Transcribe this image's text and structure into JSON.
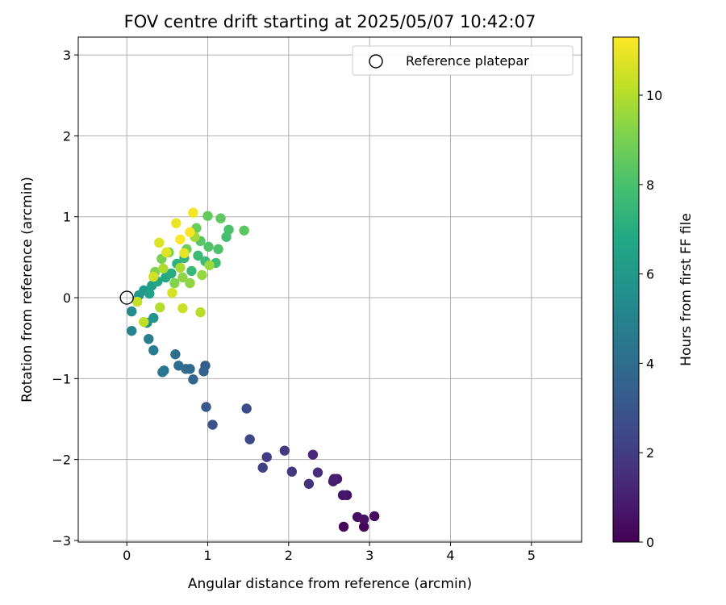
{
  "chart_data": {
    "type": "scatter",
    "title": "FOV centre drift starting at 2025/05/07 10:42:07",
    "xlabel": "Angular distance from reference (arcmin)",
    "ylabel": "Rotation from reference (arcmin)",
    "xlim": [
      -0.6,
      5.62
    ],
    "ylim": [
      -3.02,
      3.22
    ],
    "xticks": [
      0,
      1,
      2,
      3,
      4,
      5
    ],
    "yticks": [
      -3,
      -2,
      -1,
      0,
      1,
      2,
      3
    ],
    "grid": true,
    "legend": {
      "position": "top-right",
      "entries": [
        "Reference platepar"
      ]
    },
    "reference_point": {
      "x": 0,
      "y": 0,
      "label": "Reference platepar"
    },
    "colorbar": {
      "label": "Hours from first FF file",
      "min": 0,
      "max": 11.3,
      "ticks": [
        0,
        2,
        4,
        6,
        8,
        10
      ],
      "colormap": "viridis"
    },
    "points": [
      {
        "x": 2.93,
        "y": -2.83,
        "h": 0.1
      },
      {
        "x": 2.68,
        "y": -2.83,
        "h": 0.2
      },
      {
        "x": 3.06,
        "y": -2.7,
        "h": 0.3
      },
      {
        "x": 2.85,
        "y": -2.71,
        "h": 0.4
      },
      {
        "x": 2.93,
        "y": -2.74,
        "h": 0.5
      },
      {
        "x": 2.72,
        "y": -2.44,
        "h": 0.6
      },
      {
        "x": 2.67,
        "y": -2.44,
        "h": 0.7
      },
      {
        "x": 2.6,
        "y": -2.24,
        "h": 0.8
      },
      {
        "x": 2.55,
        "y": -2.27,
        "h": 0.9
      },
      {
        "x": 2.56,
        "y": -2.24,
        "h": 1.0
      },
      {
        "x": 2.3,
        "y": -1.94,
        "h": 1.3
      },
      {
        "x": 2.36,
        "y": -2.16,
        "h": 1.5
      },
      {
        "x": 2.25,
        "y": -2.3,
        "h": 1.7
      },
      {
        "x": 2.04,
        "y": -2.15,
        "h": 1.8
      },
      {
        "x": 1.95,
        "y": -1.89,
        "h": 1.9
      },
      {
        "x": 1.73,
        "y": -1.97,
        "h": 2.0
      },
      {
        "x": 1.68,
        "y": -2.1,
        "h": 2.1
      },
      {
        "x": 1.52,
        "y": -1.75,
        "h": 2.4
      },
      {
        "x": 1.48,
        "y": -1.37,
        "h": 2.6
      },
      {
        "x": 1.06,
        "y": -1.57,
        "h": 2.8
      },
      {
        "x": 0.98,
        "y": -1.35,
        "h": 3.0
      },
      {
        "x": 0.97,
        "y": -0.84,
        "h": 3.3
      },
      {
        "x": 0.95,
        "y": -0.91,
        "h": 3.5
      },
      {
        "x": 0.82,
        "y": -1.01,
        "h": 3.7
      },
      {
        "x": 0.78,
        "y": -0.88,
        "h": 3.8
      },
      {
        "x": 0.73,
        "y": -0.88,
        "h": 3.9
      },
      {
        "x": 0.64,
        "y": -0.84,
        "h": 4.0
      },
      {
        "x": 0.6,
        "y": -0.7,
        "h": 4.1
      },
      {
        "x": 0.46,
        "y": -0.9,
        "h": 4.3
      },
      {
        "x": 0.44,
        "y": -0.92,
        "h": 4.4
      },
      {
        "x": 0.33,
        "y": -0.65,
        "h": 4.6
      },
      {
        "x": 0.27,
        "y": -0.51,
        "h": 4.8
      },
      {
        "x": 0.06,
        "y": -0.41,
        "h": 5.0
      },
      {
        "x": 0.06,
        "y": -0.17,
        "h": 5.4
      },
      {
        "x": 0.25,
        "y": -0.31,
        "h": 5.6
      },
      {
        "x": 0.33,
        "y": -0.25,
        "h": 5.8
      },
      {
        "x": 0.15,
        "y": 0.03,
        "h": 5.9
      },
      {
        "x": 0.21,
        "y": 0.09,
        "h": 6.1
      },
      {
        "x": 0.31,
        "y": 0.15,
        "h": 6.3
      },
      {
        "x": 0.28,
        "y": 0.05,
        "h": 6.5
      },
      {
        "x": 0.38,
        "y": 0.2,
        "h": 6.7
      },
      {
        "x": 0.48,
        "y": 0.25,
        "h": 6.8
      },
      {
        "x": 0.55,
        "y": 0.3,
        "h": 7.0
      },
      {
        "x": 0.62,
        "y": 0.42,
        "h": 7.2
      },
      {
        "x": 0.71,
        "y": 0.49,
        "h": 7.4
      },
      {
        "x": 0.8,
        "y": 0.33,
        "h": 7.5
      },
      {
        "x": 0.88,
        "y": 0.52,
        "h": 7.6
      },
      {
        "x": 0.97,
        "y": 0.45,
        "h": 7.7
      },
      {
        "x": 1.1,
        "y": 0.43,
        "h": 7.8
      },
      {
        "x": 1.23,
        "y": 0.75,
        "h": 7.9
      },
      {
        "x": 1.26,
        "y": 0.84,
        "h": 8.0
      },
      {
        "x": 1.13,
        "y": 0.6,
        "h": 8.1
      },
      {
        "x": 1.01,
        "y": 0.63,
        "h": 8.2
      },
      {
        "x": 0.91,
        "y": 0.7,
        "h": 8.3
      },
      {
        "x": 1.45,
        "y": 0.83,
        "h": 8.4
      },
      {
        "x": 1.16,
        "y": 0.98,
        "h": 8.5
      },
      {
        "x": 1.0,
        "y": 1.01,
        "h": 8.6
      },
      {
        "x": 0.86,
        "y": 0.86,
        "h": 8.7
      },
      {
        "x": 0.74,
        "y": 0.6,
        "h": 8.8
      },
      {
        "x": 0.52,
        "y": 0.56,
        "h": 8.9
      },
      {
        "x": 0.43,
        "y": 0.48,
        "h": 9.0
      },
      {
        "x": 0.35,
        "y": 0.32,
        "h": 9.1
      },
      {
        "x": 0.59,
        "y": 0.18,
        "h": 9.2
      },
      {
        "x": 0.69,
        "y": 0.25,
        "h": 9.3
      },
      {
        "x": 0.78,
        "y": 0.18,
        "h": 9.4
      },
      {
        "x": 0.93,
        "y": 0.28,
        "h": 9.5
      },
      {
        "x": 1.02,
        "y": 0.4,
        "h": 9.6
      },
      {
        "x": 0.84,
        "y": 0.75,
        "h": 9.7
      },
      {
        "x": 0.66,
        "y": 0.37,
        "h": 9.8
      },
      {
        "x": 0.45,
        "y": 0.36,
        "h": 9.9
      },
      {
        "x": 0.41,
        "y": -0.12,
        "h": 10.0
      },
      {
        "x": 0.91,
        "y": -0.18,
        "h": 10.1
      },
      {
        "x": 0.21,
        "y": -0.3,
        "h": 10.2
      },
      {
        "x": 0.13,
        "y": -0.05,
        "h": 10.3
      },
      {
        "x": 0.69,
        "y": -0.13,
        "h": 10.4
      },
      {
        "x": 0.33,
        "y": 0.26,
        "h": 10.5
      },
      {
        "x": 0.56,
        "y": 0.06,
        "h": 10.6
      },
      {
        "x": 0.4,
        "y": 0.68,
        "h": 10.7
      },
      {
        "x": 0.49,
        "y": 0.56,
        "h": 10.8
      },
      {
        "x": 0.71,
        "y": 0.55,
        "h": 10.9
      },
      {
        "x": 0.61,
        "y": 0.92,
        "h": 11.0
      },
      {
        "x": 0.82,
        "y": 1.05,
        "h": 11.1
      },
      {
        "x": 0.78,
        "y": 0.81,
        "h": 11.2
      },
      {
        "x": 0.66,
        "y": 0.72,
        "h": 11.25
      }
    ]
  }
}
